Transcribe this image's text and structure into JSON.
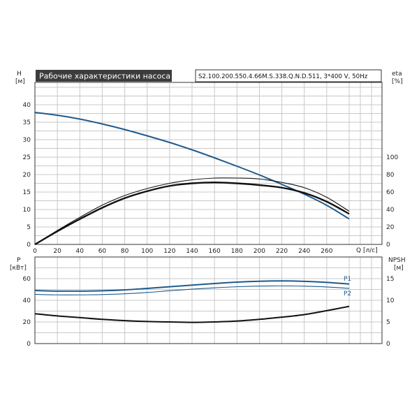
{
  "colors": {
    "head": "#1f5a8c",
    "efficiency": "#111111",
    "p1": "#1f5a8c",
    "p2": "#1f5a8c",
    "npsh": "#111111",
    "grid": "#c8c8c8",
    "title_bg": "#3c3c3c"
  },
  "chart_data": [
    {
      "type": "line",
      "title": "Рабочие характеристики насоса",
      "subtitle": "S2.100.200.550.4.66M.S.338.Q.N.D.511, 3*400 V, 50Hz",
      "xlabel": "Q [л/с]",
      "ylabel_left": [
        "H",
        "[м]"
      ],
      "ylabel_right": [
        "eta",
        "[%]"
      ],
      "xlim": [
        0,
        280
      ],
      "ylim_left": [
        0,
        40
      ],
      "ylim_right": [
        0,
        100
      ],
      "x_ticks": [
        "0",
        "20",
        "40",
        "60",
        "80",
        "100",
        "120",
        "140",
        "160",
        "180",
        "200",
        "220",
        "240",
        "260"
      ],
      "y_ticks_left": [
        "0",
        "5",
        "10",
        "15",
        "20",
        "25",
        "30",
        "35",
        "40"
      ],
      "y_ticks_right": [
        "0",
        "20",
        "40",
        "60",
        "80",
        "100"
      ],
      "grid": true,
      "series": [
        {
          "axis": "left",
          "x": [
            0,
            20,
            40,
            60,
            80,
            100,
            120,
            140,
            160,
            180,
            200,
            220,
            240,
            260,
            280
          ],
          "values": [
            37.8,
            37.0,
            35.9,
            34.5,
            32.9,
            31.1,
            29.2,
            27.1,
            24.8,
            22.4,
            19.9,
            17.2,
            14.4,
            11.2,
            7.3
          ]
        },
        {
          "axis": "right",
          "x": [
            0,
            20,
            40,
            60,
            80,
            100,
            120,
            140,
            160,
            180,
            200,
            220,
            240,
            260,
            280
          ],
          "values": [
            0,
            15,
            29,
            42,
            53,
            61,
            67,
            70,
            71,
            70,
            68,
            65,
            59,
            49,
            35
          ]
        },
        {
          "axis": "right",
          "x": [
            0,
            20,
            40,
            60,
            80,
            100,
            120,
            140,
            160,
            180,
            200,
            220,
            240,
            260,
            280
          ],
          "values": [
            0,
            16,
            31,
            45,
            56,
            64,
            70,
            74,
            76,
            76,
            75,
            71,
            65,
            54,
            38
          ]
        }
      ]
    },
    {
      "type": "line",
      "ylabel_left": [
        "P",
        "[кВт]"
      ],
      "ylabel_right": [
        "NPSH",
        "[м]"
      ],
      "xlim": [
        0,
        280
      ],
      "ylim_left": [
        0,
        80
      ],
      "ylim_right": [
        0,
        20
      ],
      "y_ticks_left": [
        "0",
        "20",
        "40",
        "60"
      ],
      "y_ticks_right": [
        "0",
        "5",
        "10",
        "15"
      ],
      "grid": true,
      "series": [
        {
          "name": "P1",
          "axis": "left",
          "x": [
            0,
            20,
            40,
            60,
            80,
            100,
            120,
            140,
            160,
            180,
            200,
            220,
            240,
            260,
            280
          ],
          "values": [
            49,
            48.5,
            48.5,
            48.8,
            49.6,
            51,
            52.5,
            54,
            55.5,
            56.8,
            57.6,
            57.9,
            57.5,
            56.5,
            55
          ]
        },
        {
          "name": "P2",
          "axis": "left",
          "x": [
            0,
            20,
            40,
            60,
            80,
            100,
            120,
            140,
            160,
            180,
            200,
            220,
            240,
            260,
            280
          ],
          "values": [
            45.5,
            45,
            45,
            45.3,
            46,
            47.2,
            48.8,
            50.3,
            51.5,
            52.5,
            53.1,
            53.3,
            53,
            52.3,
            51
          ]
        },
        {
          "axis": "right",
          "x": [
            0,
            20,
            40,
            60,
            80,
            100,
            120,
            140,
            160,
            180,
            200,
            220,
            240,
            260,
            280
          ],
          "values": [
            6.9,
            6.4,
            6.0,
            5.6,
            5.3,
            5.1,
            5.0,
            4.9,
            5.0,
            5.2,
            5.6,
            6.1,
            6.7,
            7.6,
            8.6
          ]
        }
      ]
    }
  ]
}
